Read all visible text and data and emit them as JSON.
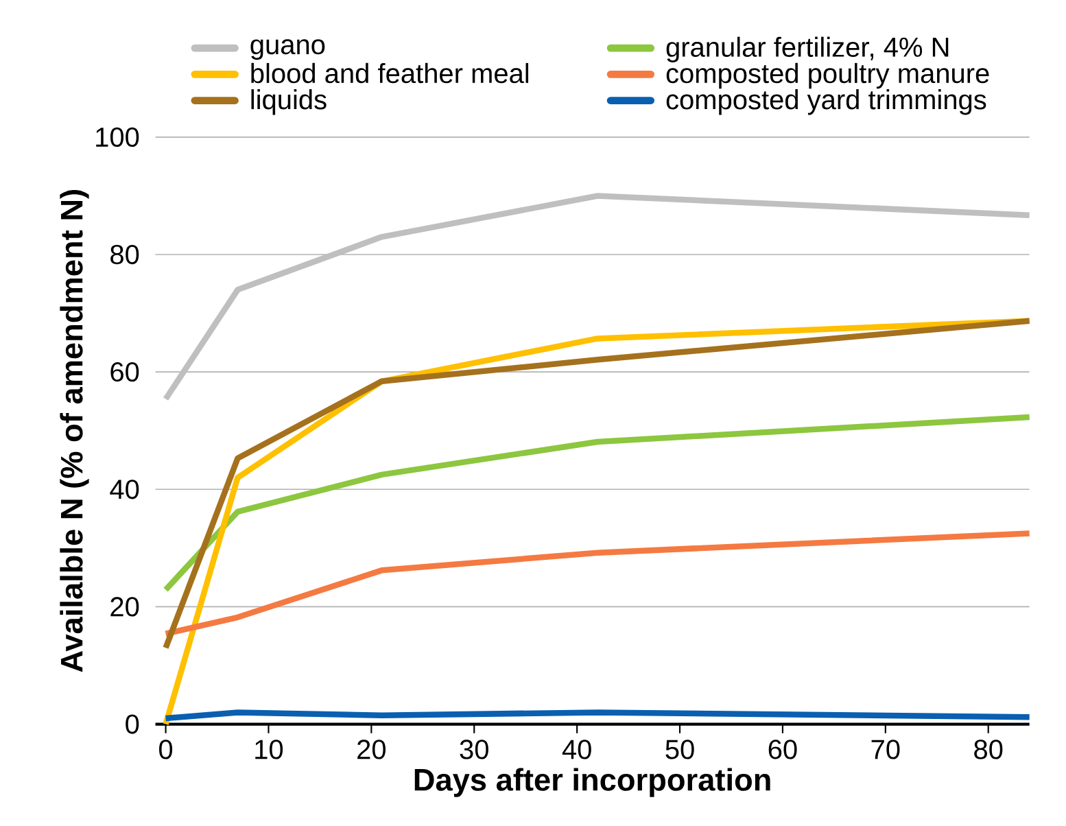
{
  "chart_data": {
    "type": "line",
    "xlabel": "Days after incorporation",
    "ylabel": "Availalble N (% of amendment N)",
    "x": [
      0,
      7,
      21,
      42,
      84
    ],
    "series": [
      {
        "name": "guano",
        "color": "#bfbfbf",
        "values": [
          55.4,
          74,
          83,
          90,
          86.7
        ]
      },
      {
        "name": "blood and feather meal",
        "color": "#ffc000",
        "values": [
          0,
          42,
          58.4,
          65.7,
          68.7
        ]
      },
      {
        "name": "liquids",
        "color": "#a5711d",
        "values": [
          13,
          45.3,
          58.4,
          62.1,
          68.7
        ]
      },
      {
        "name": "granular fertilizer, 4% N",
        "color": "#8dc63f",
        "values": [
          22.9,
          36.2,
          42.5,
          48.1,
          52.3
        ]
      },
      {
        "name": "composted poultry manure",
        "color": "#f47a42",
        "values": [
          15.4,
          18.2,
          26.2,
          29.2,
          32.5
        ]
      },
      {
        "name": "composted yard trimmings",
        "color": "#0a5fb0",
        "values": [
          1,
          2,
          1.5,
          2,
          1.2
        ]
      }
    ],
    "xlim": [
      -1,
      84
    ],
    "xticks": [
      0,
      10,
      20,
      30,
      40,
      50,
      60,
      70,
      80
    ],
    "ylim": [
      0,
      100
    ],
    "yticks": [
      0,
      20,
      40,
      60,
      80,
      100
    ],
    "grid": "y",
    "legend": "top",
    "marker": "none",
    "line_style": "solid"
  }
}
